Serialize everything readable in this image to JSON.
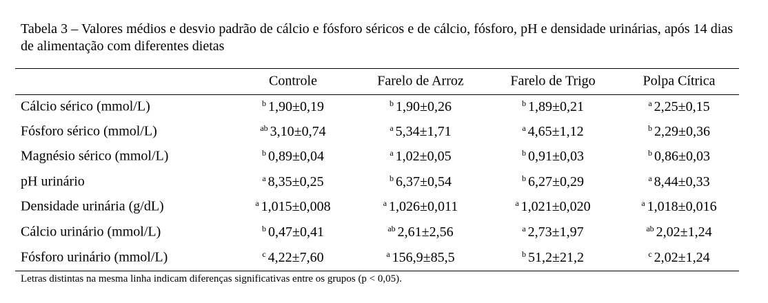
{
  "table": {
    "title": "Tabela 3 – Valores médios e desvio padrão de cálcio e fósforo séricos e de cálcio, fósforo, pH e densidade urinárias, após 14 dias de alimentação com diferentes dietas",
    "columns": [
      "Controle",
      "Farelo de Arroz",
      "Farelo de Trigo",
      "Polpa Cítrica"
    ],
    "rows": [
      {
        "label": "Cálcio sérico (mmol/L)",
        "cells": [
          {
            "sup": "b",
            "value": "1,90±0,19"
          },
          {
            "sup": "b",
            "value": "1,90±0,26"
          },
          {
            "sup": "b",
            "value": "1,89±0,21"
          },
          {
            "sup": "a",
            "value": "2,25±0,15"
          }
        ]
      },
      {
        "label": "Fósforo sérico (mmol/L)",
        "cells": [
          {
            "sup": "ab",
            "value": "3,10±0,74"
          },
          {
            "sup": "a",
            "value": "5,34±1,71"
          },
          {
            "sup": "a",
            "value": "4,65±1,12"
          },
          {
            "sup": "b",
            "value": "2,29±0,36"
          }
        ]
      },
      {
        "label": "Magnésio sérico (mmol/L)",
        "cells": [
          {
            "sup": "b",
            "value": "0,89±0,04"
          },
          {
            "sup": "a",
            "value": "1,02±0,05"
          },
          {
            "sup": "b",
            "value": "0,91±0,03"
          },
          {
            "sup": "b",
            "value": "0,86±0,03"
          }
        ]
      },
      {
        "label": "pH urinário",
        "cells": [
          {
            "sup": "a",
            "value": "8,35±0,25"
          },
          {
            "sup": "b",
            "value": "6,37±0,54"
          },
          {
            "sup": "b",
            "value": "6,27±0,29"
          },
          {
            "sup": "a",
            "value": "8,44±0,33"
          }
        ]
      },
      {
        "label": "Densidade urinária (g/dL)",
        "cells": [
          {
            "sup": "a",
            "value": "1,015±0,008"
          },
          {
            "sup": "a",
            "value": "1,026±0,011"
          },
          {
            "sup": "a",
            "value": "1,021±0,020"
          },
          {
            "sup": "a",
            "value": "1,018±0,016"
          }
        ]
      },
      {
        "label": "Cálcio urinário (mmol/L)",
        "cells": [
          {
            "sup": "b",
            "value": "0,47±0,41"
          },
          {
            "sup": "ab",
            "value": "2,61±2,56"
          },
          {
            "sup": "a",
            "value": "2,73±1,97"
          },
          {
            "sup": "ab",
            "value": "2,02±1,24"
          }
        ]
      },
      {
        "label": "Fósforo urinário (mmol/L)",
        "cells": [
          {
            "sup": "c",
            "value": "4,22±7,60"
          },
          {
            "sup": "a",
            "value": "156,9±85,5"
          },
          {
            "sup": "b",
            "value": "51,2±21,2"
          },
          {
            "sup": "c",
            "value": "2,02±1,24"
          }
        ]
      }
    ],
    "footnote": "Letras distintas na mesma linha indicam diferenças significativas entre os grupos (p < 0,05)."
  }
}
